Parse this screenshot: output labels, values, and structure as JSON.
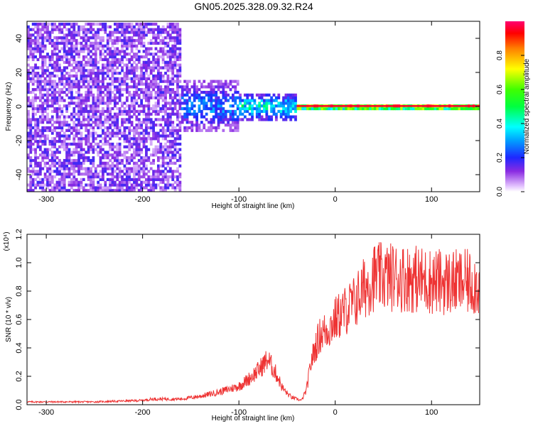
{
  "title": "GN05.2025.328.09.32.R24",
  "chart_data": [
    {
      "type": "heatmap",
      "name": "spectrogram",
      "xlabel": "Height of straight line (km)",
      "ylabel": "Frequency (Hz)",
      "xlim": [
        -320,
        150
      ],
      "ylim": [
        -50,
        50
      ],
      "xticks": [
        -300,
        -200,
        -100,
        0,
        100
      ],
      "yticks": [
        -40,
        -20,
        0,
        20,
        40
      ],
      "colorbar": {
        "label": "Normalized spectral amplitude",
        "range": [
          0,
          1
        ],
        "ticks": [
          "0.0",
          "0.2",
          "0.4",
          "0.6",
          "0.8"
        ],
        "tick_values": [
          0.0,
          0.2,
          0.4,
          0.6,
          0.8
        ]
      },
      "regions": [
        {
          "x_range": [
            -320,
            -160
          ],
          "freq_spread": 50,
          "amplitude": 0.15,
          "density": 0.7
        },
        {
          "x_range": [
            -160,
            -100
          ],
          "freq_spread": 15,
          "amplitude": 0.3,
          "density": 0.6
        },
        {
          "x_range": [
            -100,
            -40
          ],
          "freq_spread": 8,
          "amplitude": 0.45,
          "density": 0.7
        },
        {
          "x_range": [
            -40,
            150
          ],
          "freq_spread": 2,
          "amplitude": 0.9,
          "density": 1.0
        }
      ]
    },
    {
      "type": "line",
      "name": "snr",
      "xlabel": "Height of straight line (km)",
      "ylabel": "SNR (10 * v/v)",
      "y_multiplier": "(x10⁴)",
      "xlim": [
        -320,
        150
      ],
      "ylim": [
        0,
        1.2
      ],
      "xticks": [
        -300,
        -200,
        -100,
        0,
        100
      ],
      "yticks": [
        "0.0",
        "0.2",
        "0.4",
        "0.6",
        "0.8",
        "1.0",
        "1.2"
      ],
      "ytick_values": [
        0.0,
        0.2,
        0.4,
        0.6,
        0.8,
        1.0,
        1.2
      ],
      "color": "#ee3333",
      "x": [
        -320,
        -250,
        -200,
        -190,
        -160,
        -140,
        -120,
        -100,
        -90,
        -80,
        -70,
        -60,
        -55,
        -50,
        -45,
        -40,
        -35,
        -30,
        -25,
        -20,
        -15,
        -10,
        -5,
        0,
        5,
        10,
        20,
        30,
        40,
        60,
        80,
        100,
        120,
        140,
        150
      ],
      "y": [
        0.02,
        0.02,
        0.03,
        0.04,
        0.04,
        0.06,
        0.09,
        0.13,
        0.18,
        0.24,
        0.32,
        0.2,
        0.12,
        0.08,
        0.05,
        0.04,
        0.03,
        0.1,
        0.3,
        0.42,
        0.5,
        0.52,
        0.55,
        0.6,
        0.63,
        0.66,
        0.72,
        0.82,
        0.9,
        0.9,
        0.89,
        0.87,
        0.86,
        0.86,
        0.85
      ]
    }
  ]
}
